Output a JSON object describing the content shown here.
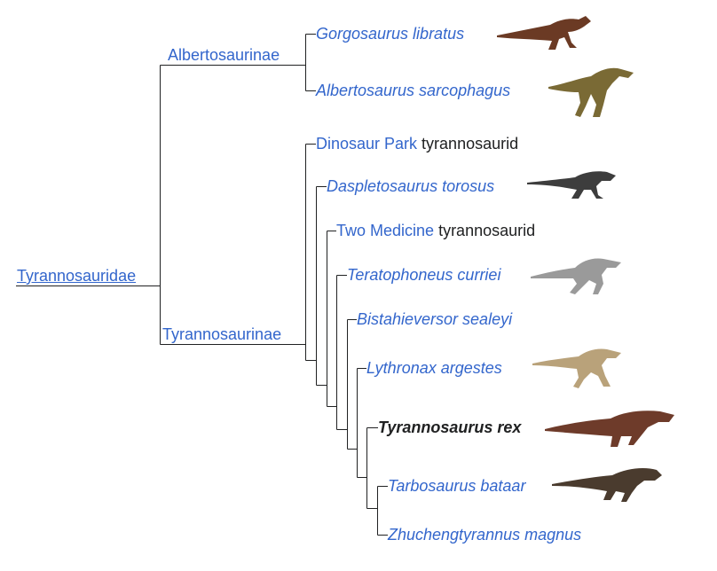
{
  "cladogram": {
    "root": {
      "label": "Tyrannosauridae"
    },
    "albertosaurinae": {
      "label": "Albertosaurinae"
    },
    "tyrannosaurinae": {
      "label": "Tyrannosaurinae"
    },
    "taxa": [
      {
        "name": "Gorgosaurus libratus"
      },
      {
        "name": "Albertosaurus sarcophagus"
      },
      {
        "name_link": "Dinosaur Park",
        "name_rest": " tyrannosaurid"
      },
      {
        "name": "Daspletosaurus torosus"
      },
      {
        "name_link": "Two Medicine",
        "name_rest": " tyrannosaurid"
      },
      {
        "name": "Teratophoneus curriei"
      },
      {
        "name": "Bistahieversor sealeyi"
      },
      {
        "name": "Lythronax argestes"
      },
      {
        "name": "Tyrannosaurus rex"
      },
      {
        "name": "Tarbosaurus bataar"
      },
      {
        "name": "Zhuchengtyrannus magnus"
      }
    ],
    "colors": {
      "link": "#3366cc",
      "line": "#202122",
      "text": "#202122"
    },
    "silhouettes": [
      {
        "for": "Gorgosaurus libratus",
        "color": "#6b3a24"
      },
      {
        "for": "Albertosaurus sarcophagus",
        "color": "#7a6a35"
      },
      {
        "for": "Daspletosaurus torosus",
        "color": "#3d3d3d"
      },
      {
        "for": "Teratophoneus curriei",
        "color": "#9a9a9a"
      },
      {
        "for": "Lythronax argestes",
        "color": "#b9a27a"
      },
      {
        "for": "Tyrannosaurus rex",
        "color": "#6e3b2a"
      },
      {
        "for": "Tarbosaurus bataar",
        "color": "#4a3b2e"
      }
    ]
  }
}
